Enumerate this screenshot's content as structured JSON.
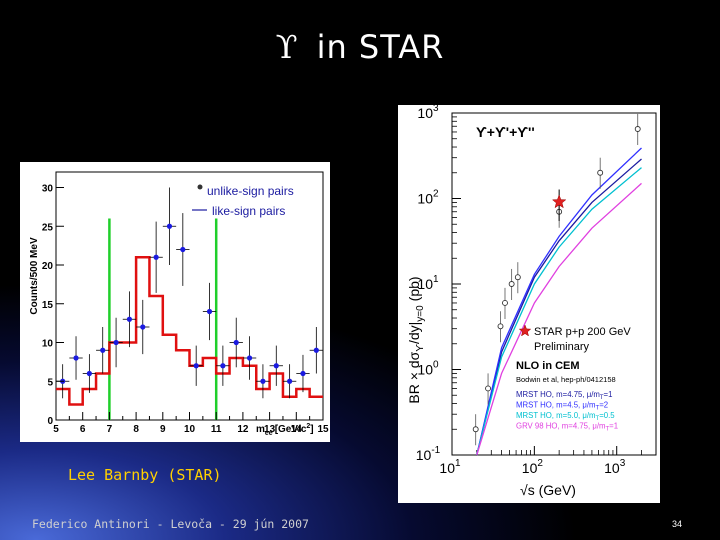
{
  "slide": {
    "title_symbol": "ϒ",
    "title_text": "in STAR",
    "credit": "Lee Barnby (STAR)",
    "footer": "Federico Antinori - Levoča - 29 jún 2007",
    "page_number": "34"
  },
  "chart_data": [
    {
      "type": "histogram",
      "ylabel": "Counts/500 MeV",
      "xlabel_main": "m",
      "xlabel_sub": "ee",
      "xlabel_unit": "[GeV/c",
      "xlabel_sup": "2",
      "xlabel_close": "]",
      "xlim": [
        5,
        15
      ],
      "ylim": [
        0,
        32
      ],
      "x_ticks": [
        "5",
        "6",
        "7",
        "8",
        "9",
        "10",
        "11",
        "12",
        "13",
        "14",
        "15"
      ],
      "y_ticks": [
        "0",
        "5",
        "10",
        "15",
        "20",
        "25",
        "30"
      ],
      "legend": [
        {
          "label": "unlike-sign pairs",
          "marker": "dot"
        },
        {
          "label": "like-sign pairs",
          "marker": "line"
        }
      ],
      "mass_window": [
        7,
        11
      ],
      "unlike_sign_points": [
        {
          "x": 5.25,
          "y": 5,
          "err": 2.2
        },
        {
          "x": 5.75,
          "y": 8,
          "err": 2.8
        },
        {
          "x": 6.25,
          "y": 6,
          "err": 2.5
        },
        {
          "x": 6.75,
          "y": 9,
          "err": 3.0
        },
        {
          "x": 7.25,
          "y": 10,
          "err": 3.2
        },
        {
          "x": 7.75,
          "y": 13,
          "err": 3.6
        },
        {
          "x": 8.25,
          "y": 12,
          "err": 3.5
        },
        {
          "x": 8.75,
          "y": 21,
          "err": 4.6
        },
        {
          "x": 9.25,
          "y": 25,
          "err": 5.0
        },
        {
          "x": 9.75,
          "y": 22,
          "err": 4.7
        },
        {
          "x": 10.25,
          "y": 7,
          "err": 2.6
        },
        {
          "x": 10.75,
          "y": 14,
          "err": 3.7
        },
        {
          "x": 11.25,
          "y": 7,
          "err": 2.6
        },
        {
          "x": 11.75,
          "y": 10,
          "err": 3.2
        },
        {
          "x": 12.25,
          "y": 8,
          "err": 2.8
        },
        {
          "x": 12.75,
          "y": 5,
          "err": 2.2
        },
        {
          "x": 13.25,
          "y": 7,
          "err": 2.6
        },
        {
          "x": 13.75,
          "y": 5,
          "err": 2.2
        },
        {
          "x": 14.25,
          "y": 6,
          "err": 2.4
        },
        {
          "x": 14.75,
          "y": 9,
          "err": 3.0
        }
      ],
      "like_sign_bins": {
        "edges": [
          5,
          5.5,
          6,
          6.5,
          7,
          7.5,
          8,
          8.5,
          9,
          9.5,
          10,
          10.5,
          11,
          11.5,
          12,
          12.5,
          13,
          13.5,
          14,
          14.5,
          15
        ],
        "values": [
          4,
          2,
          4,
          6,
          10,
          10,
          21,
          16,
          11,
          9,
          7,
          8,
          6,
          8,
          7,
          4,
          6,
          3,
          4,
          3
        ]
      }
    },
    {
      "type": "line",
      "log_x": true,
      "log_y": true,
      "xlabel": "√s (GeV)",
      "ylabel": "BR × dσ",
      "ylabel_sub": "ϒ",
      "ylabel_tail": "/dy|",
      "ylabel_sub2": "y=0",
      "ylabel_unit": "(pb)",
      "xlim": [
        10,
        3000
      ],
      "ylim": [
        0.1,
        1000
      ],
      "x_ticks": [
        {
          "base": "10",
          "exp": "1"
        },
        {
          "base": "10",
          "exp": "2"
        },
        {
          "base": "10",
          "exp": "3"
        }
      ],
      "y_ticks": [
        {
          "base": "10",
          "exp": "-1"
        },
        {
          "base": "10",
          "exp": "0"
        },
        {
          "base": "10",
          "exp": "1"
        },
        {
          "base": "10",
          "exp": "2"
        },
        {
          "base": "10",
          "exp": "3"
        }
      ],
      "panel_label": "ϒ+ϒ'+ϒ''",
      "star_label_1": "STAR p+p 200 GeV",
      "star_label_2": "Preliminary",
      "nlo_title": "NLO in CEM",
      "nlo_ref": "Bodwin et al, hep-ph/0412158",
      "series": [
        {
          "name": "MRST HO, m=4.75, μ/m",
          "sub": "T",
          "tail": "=1",
          "color": "#1a1aa0",
          "x": [
            20,
            40,
            100,
            200,
            500,
            2000
          ],
          "y": [
            0.08,
            1.6,
            12,
            32,
            90,
            290
          ]
        },
        {
          "name": "MRST HO, m=4.5, μ/m",
          "sub": "T",
          "tail": "=2",
          "color": "#3030ff",
          "x": [
            20,
            40,
            100,
            200,
            500,
            2000
          ],
          "y": [
            0.09,
            1.8,
            13,
            36,
            110,
            390
          ]
        },
        {
          "name": "MRST HO, m=5.0, μ/m",
          "sub": "T",
          "tail": "=0.5",
          "color": "#00c0d0",
          "x": [
            20,
            40,
            100,
            200,
            500,
            2000
          ],
          "y": [
            0.07,
            1.4,
            10,
            27,
            75,
            230
          ]
        },
        {
          "name": "GRV 98 HO, m=4.75, μ/m",
          "sub": "T",
          "tail": "=1",
          "color": "#e040e0",
          "x": [
            20,
            40,
            100,
            200,
            500,
            2000
          ],
          "y": [
            0.05,
            0.9,
            6,
            16,
            45,
            150
          ]
        }
      ],
      "data_points": [
        {
          "x": 19.4,
          "y": 0.2
        },
        {
          "x": 27.4,
          "y": 0.6
        },
        {
          "x": 38.8,
          "y": 3.2
        },
        {
          "x": 44,
          "y": 6.0
        },
        {
          "x": 53,
          "y": 10
        },
        {
          "x": 63,
          "y": 12
        },
        {
          "x": 200,
          "y": 70
        },
        {
          "x": 630,
          "y": 200
        },
        {
          "x": 1800,
          "y": 650
        }
      ],
      "star_point": {
        "x": 200,
        "y": 91
      }
    }
  ]
}
